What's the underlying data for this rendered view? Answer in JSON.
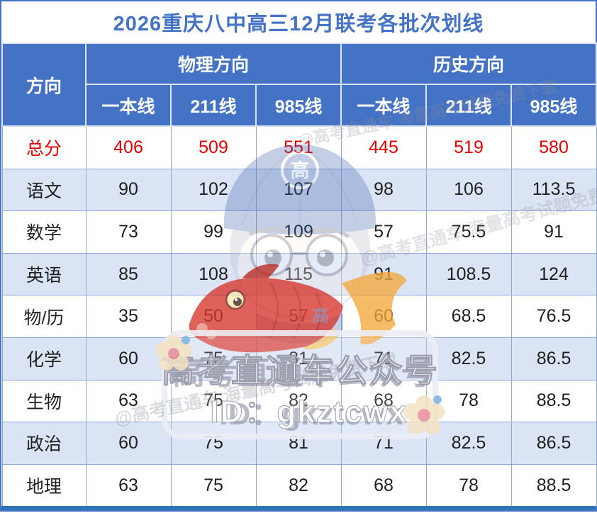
{
  "title": "2026重庆八中高三12月联考各批次划线",
  "table": {
    "corner_header": "方向",
    "group_headers": [
      {
        "label": "物理方向",
        "sub_headers": [
          "一本线",
          "211线",
          "985线"
        ]
      },
      {
        "label": "历史方向",
        "sub_headers": [
          "一本线",
          "211线",
          "985线"
        ]
      }
    ],
    "rows": [
      {
        "label": "总分",
        "values": [
          "406",
          "509",
          "551",
          "445",
          "519",
          "580"
        ],
        "highlight": true
      },
      {
        "label": "语文",
        "values": [
          "90",
          "102",
          "107",
          "98",
          "106",
          "113.5"
        ]
      },
      {
        "label": "数学",
        "values": [
          "73",
          "99",
          "109",
          "57",
          "75.5",
          "91"
        ]
      },
      {
        "label": "英语",
        "values": [
          "85",
          "108",
          "115",
          "91",
          "108.5",
          "124"
        ]
      },
      {
        "label": "物/历",
        "values": [
          "35",
          "50",
          "57",
          "60",
          "68.5",
          "76.5"
        ]
      },
      {
        "label": "化学",
        "values": [
          "60",
          "75",
          "81",
          "71",
          "82.5",
          "86.5"
        ]
      },
      {
        "label": "生物",
        "values": [
          "63",
          "75",
          "82",
          "68",
          "78",
          "88.5"
        ]
      },
      {
        "label": "政治",
        "values": [
          "60",
          "75",
          "81",
          "71",
          "82.5",
          "86.5"
        ]
      },
      {
        "label": "地理",
        "values": [
          "63",
          "75",
          "82",
          "68",
          "78",
          "88.5"
        ]
      }
    ]
  },
  "watermark": {
    "badge_line1": "高考直通车公众号",
    "badge_line2": "ID：gkztcwx",
    "mascot_emblem": "高",
    "faint_glyph": "高",
    "diagonal_text": "@高考直通车 海量高考试题免费下载"
  },
  "colors": {
    "header_blue": "#4472c4",
    "band_blue": "#dbe4f4",
    "border_blue": "#8faadc",
    "title_blue": "#4472c4",
    "accent_red": "#e60000",
    "bottom_bar": "#2e75b6"
  },
  "chart_data": {
    "type": "table",
    "title": "2026重庆八中高三12月联考各批次划线",
    "column_groups": [
      "物理方向",
      "历史方向"
    ],
    "columns": [
      "方向",
      "物理方向-一本线",
      "物理方向-211线",
      "物理方向-985线",
      "历史方向-一本线",
      "历史方向-211线",
      "历史方向-985线"
    ],
    "rows": [
      [
        "总分",
        406,
        509,
        551,
        445,
        519,
        580
      ],
      [
        "语文",
        90,
        102,
        107,
        98,
        106,
        113.5
      ],
      [
        "数学",
        73,
        99,
        109,
        57,
        75.5,
        91
      ],
      [
        "英语",
        85,
        108,
        115,
        91,
        108.5,
        124
      ],
      [
        "物/历",
        35,
        50,
        57,
        60,
        68.5,
        76.5
      ],
      [
        "化学",
        60,
        75,
        81,
        71,
        82.5,
        86.5
      ],
      [
        "生物",
        63,
        75,
        82,
        68,
        78,
        88.5
      ],
      [
        "政治",
        60,
        75,
        81,
        71,
        82.5,
        86.5
      ],
      [
        "地理",
        63,
        75,
        82,
        68,
        78,
        88.5
      ]
    ],
    "notes": "总分 row rendered in red; rows banded white/light-blue alternating"
  }
}
